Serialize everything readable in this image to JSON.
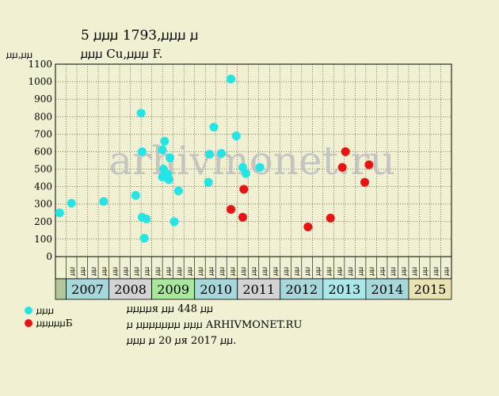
{
  "chart_data": {
    "type": "scatter",
    "title": "5 ꙡꙡꙡ 1793,ꙡꙡꙡ ꙡ",
    "subtitle": "ꙡꙡꙡ Cu,ꙡꙡꙡ F.",
    "ylabel": "ꙡꙡ,ꙡꙡ",
    "ylim": [
      0,
      1100
    ],
    "yticks": [
      0,
      100,
      200,
      300,
      400,
      500,
      600,
      700,
      800,
      900,
      1000,
      1100
    ],
    "grid": true,
    "watermark": "arhivmonet.ru",
    "quarter_labels": [
      "ꙡꙡ",
      "ꙡꙡ",
      "ꙡꙡ",
      "ꙡꙡ"
    ],
    "years": [
      "2007",
      "2008",
      "2009",
      "2010",
      "2011",
      "2012",
      "2013",
      "2014",
      "2015"
    ],
    "year_colors": [
      "#a6d7db",
      "#d3d3d3",
      "#a8e89b",
      "#a6d7db",
      "#d3d3d3",
      "#a6d7db",
      "#a8e8e8",
      "#a6d7db",
      "#e8e3b0"
    ],
    "first_column_color": "#b3c89a",
    "series": [
      {
        "name": "ꙡꙡꙡ",
        "color": "#22e6e6",
        "points": [
          {
            "q": 0.1,
            "y": 250
          },
          {
            "q": 1.2,
            "y": 305
          },
          {
            "q": 4.2,
            "y": 315
          },
          {
            "q": 7.2,
            "y": 350
          },
          {
            "q": 7.7,
            "y": 820
          },
          {
            "q": 7.8,
            "y": 600
          },
          {
            "q": 7.8,
            "y": 225
          },
          {
            "q": 8.0,
            "y": 105
          },
          {
            "q": 8.2,
            "y": 215
          },
          {
            "q": 9.7,
            "y": 610
          },
          {
            "q": 9.7,
            "y": 455
          },
          {
            "q": 9.8,
            "y": 500
          },
          {
            "q": 9.9,
            "y": 660
          },
          {
            "q": 10.2,
            "y": 470
          },
          {
            "q": 10.3,
            "y": 440
          },
          {
            "q": 10.4,
            "y": 565
          },
          {
            "q": 10.8,
            "y": 200
          },
          {
            "q": 11.2,
            "y": 375
          },
          {
            "q": 14.0,
            "y": 425
          },
          {
            "q": 14.1,
            "y": 585
          },
          {
            "q": 14.5,
            "y": 740
          },
          {
            "q": 15.2,
            "y": 590
          },
          {
            "q": 16.1,
            "y": 1015
          },
          {
            "q": 16.6,
            "y": 690
          },
          {
            "q": 17.2,
            "y": 510
          },
          {
            "q": 17.5,
            "y": 475
          },
          {
            "q": 18.8,
            "y": 510
          }
        ]
      },
      {
        "name": "ꙡꙡꙡꙡꙡБ",
        "color": "#ee1111",
        "points": [
          {
            "q": 16.1,
            "y": 270
          },
          {
            "q": 17.2,
            "y": 225
          },
          {
            "q": 17.3,
            "y": 385
          },
          {
            "q": 23.3,
            "y": 170
          },
          {
            "q": 25.4,
            "y": 220
          },
          {
            "q": 26.5,
            "y": 510
          },
          {
            "q": 26.8,
            "y": 600
          },
          {
            "q": 28.6,
            "y": 425
          },
          {
            "q": 29.0,
            "y": 525
          }
        ]
      }
    ]
  },
  "footer": {
    "line1": "ꙡꙡꙡꙡя ꙡꙡ 448 ꙡꙡ",
    "line2": "ꙡ ꙡꙡꙡꙡꙡꙡꙡ ꙡꙡꙡ ARHIVMONET.RU",
    "line3": "ꙡꙡꙡ ꙡ 20 ꙡя 2017 ꙡꙡ."
  }
}
